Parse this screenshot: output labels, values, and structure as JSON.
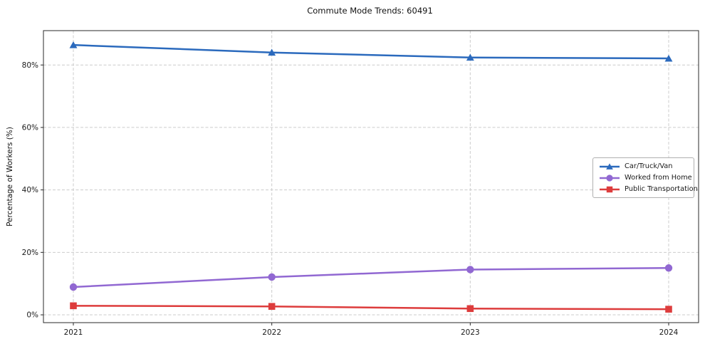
{
  "title": "Commute Mode Trends: 60491",
  "chart_data": {
    "type": "line",
    "title": "Commute Mode Trends: 60491",
    "xlabel": "",
    "ylabel": "Percentage of Workers (%)",
    "x": [
      2021,
      2022,
      2023,
      2024
    ],
    "series": [
      {
        "name": "Car/Truck/Van",
        "marker": "triangle",
        "color": "#2b6abd",
        "values": [
          86.4,
          84.0,
          82.4,
          82.1
        ]
      },
      {
        "name": "Worked from Home",
        "marker": "circle",
        "color": "#9168d2",
        "values": [
          8.9,
          12.1,
          14.5,
          15.0
        ]
      },
      {
        "name": "Public Transportation",
        "marker": "square",
        "color": "#dd3c3c",
        "values": [
          2.9,
          2.7,
          2.0,
          1.8
        ]
      }
    ],
    "yticks": [
      0,
      20,
      40,
      60,
      80
    ],
    "ytick_labels": [
      "0%",
      "20%",
      "40%",
      "60%",
      "80%"
    ],
    "ylim": [
      -2.5,
      91
    ],
    "grid": true,
    "grid_style": "dashed",
    "legend_position": "center right"
  }
}
